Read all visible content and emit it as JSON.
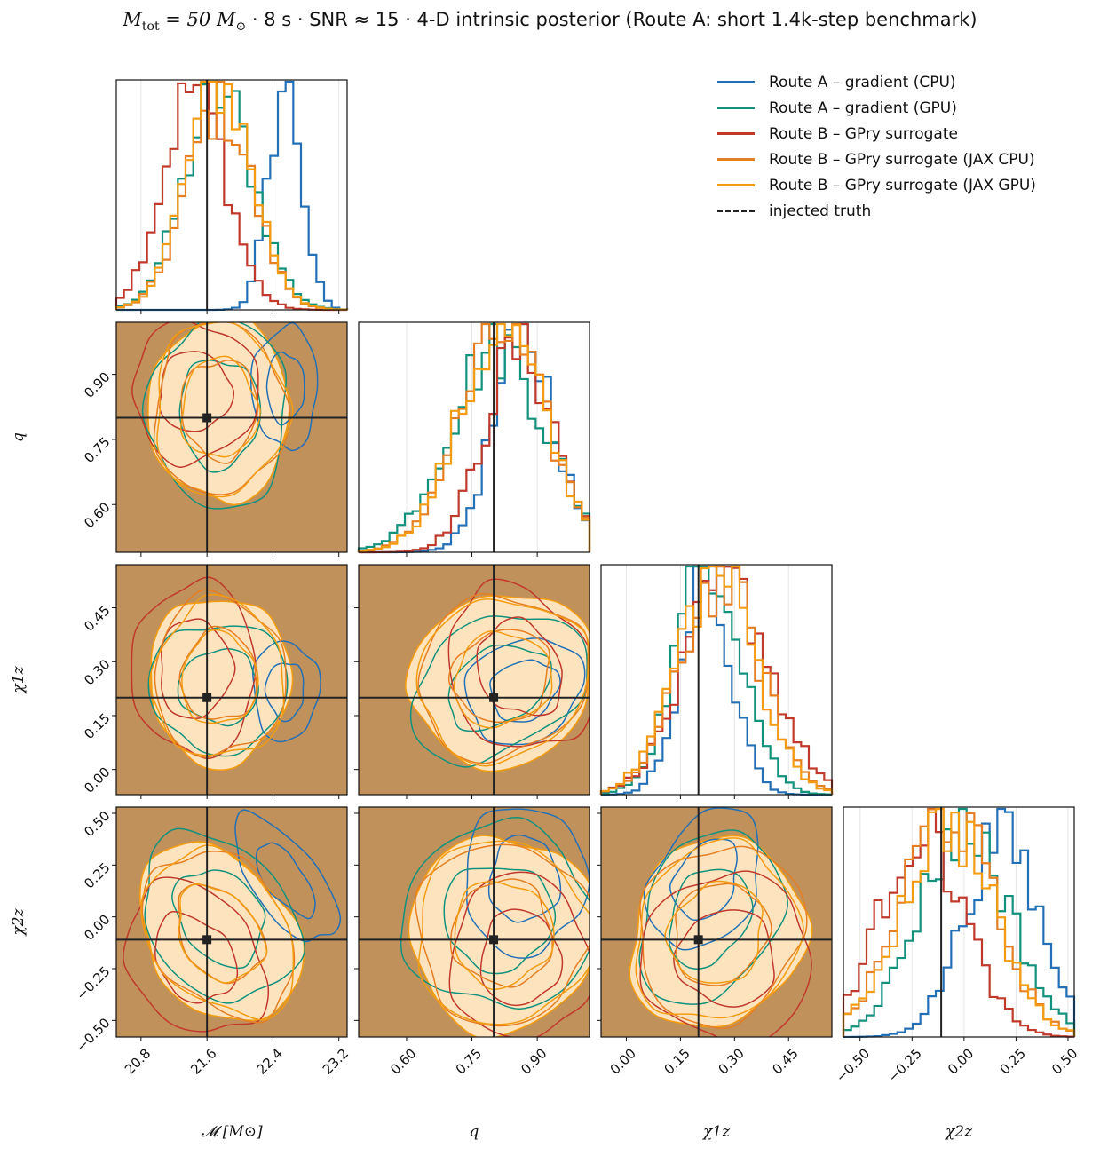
{
  "title": {
    "mass_label": "M",
    "mass_sub": "tot",
    "mass_rest": " = 50 M",
    "mass_sun": "⊙",
    "rest": "  ·  8 s  ·  SNR ≈ 15  ·  4-D intrinsic posterior  (Route A: short 1.4k-step benchmark)"
  },
  "legend": [
    {
      "label": "Route A – gradient (CPU)",
      "color": "#2370b6",
      "style": "solid"
    },
    {
      "label": "Route A – gradient (GPU)",
      "color": "#12917c",
      "style": "solid"
    },
    {
      "label": "Route B – GPry surrogate",
      "color": "#c0392b",
      "style": "solid"
    },
    {
      "label": "Route B – GPry surrogate (JAX CPU)",
      "color": "#e67e22",
      "style": "solid"
    },
    {
      "label": "Route B – GPry surrogate (JAX GPU)",
      "color": "#f39c12",
      "style": "solid"
    },
    {
      "label": "injected truth",
      "color": "#222222",
      "style": "dashed"
    }
  ],
  "chart_data": {
    "type": "corner",
    "parameters": [
      {
        "key": "mc",
        "label": "𝓜 [M⊙]",
        "range": [
          20.5,
          23.3
        ],
        "ticks": [
          "20.8",
          "21.6",
          "22.4",
          "23.2"
        ],
        "tick_values": [
          20.8,
          21.6,
          22.4,
          23.2
        ],
        "truth": 21.6
      },
      {
        "key": "q",
        "label": "q",
        "range": [
          0.49,
          1.02
        ],
        "ticks": [
          "0.60",
          "0.75",
          "0.90"
        ],
        "tick_values": [
          0.6,
          0.75,
          0.9
        ],
        "truth": 0.8
      },
      {
        "key": "chi1z",
        "label": "χ1z",
        "range": [
          -0.07,
          0.57
        ],
        "ticks": [
          "0.00",
          "0.15",
          "0.30",
          "0.45"
        ],
        "tick_values": [
          0.0,
          0.15,
          0.3,
          0.45
        ],
        "truth": 0.2
      },
      {
        "key": "chi2z",
        "label": "χ2z",
        "range": [
          -0.58,
          0.53
        ],
        "ticks": [
          "−0.50",
          "−0.25",
          "0.00",
          "0.25",
          "0.50"
        ],
        "tick_values": [
          -0.5,
          -0.25,
          0.0,
          0.25,
          0.5
        ],
        "truth": -0.11
      }
    ],
    "series": [
      {
        "name": "Route A – gradient (CPU)",
        "color": "#2370b6",
        "mean": [
          22.55,
          0.87,
          0.22,
          0.18
        ],
        "sd": [
          0.2,
          0.07,
          0.07,
          0.18
        ]
      },
      {
        "name": "Route A – gradient (GPU)",
        "color": "#12917c",
        "mean": [
          21.75,
          0.81,
          0.23,
          0.0
        ],
        "sd": [
          0.42,
          0.11,
          0.09,
          0.22
        ]
      },
      {
        "name": "Route B – GPry surrogate",
        "color": "#c0392b",
        "mean": [
          21.45,
          0.86,
          0.28,
          -0.2
        ],
        "sd": [
          0.38,
          0.08,
          0.12,
          0.2
        ]
      },
      {
        "name": "Route B – GPry surrogate (JAX CPU)",
        "color": "#e67e22",
        "mean": [
          21.75,
          0.82,
          0.26,
          -0.08
        ],
        "sd": [
          0.4,
          0.1,
          0.11,
          0.22
        ]
      },
      {
        "name": "Route B – GPry surrogate (JAX GPU)",
        "color": "#f39c12",
        "mean": [
          21.75,
          0.82,
          0.25,
          -0.08
        ],
        "sd": [
          0.4,
          0.1,
          0.11,
          0.22
        ]
      }
    ],
    "pair_correlations": {
      "0-3": 0.65,
      "1-2": 0.5,
      "2-3": -0.45
    },
    "truth": [
      21.6,
      0.8,
      0.2,
      -0.11
    ],
    "fill_color": "#c0915b",
    "credible_fill": "#fde4bf"
  }
}
